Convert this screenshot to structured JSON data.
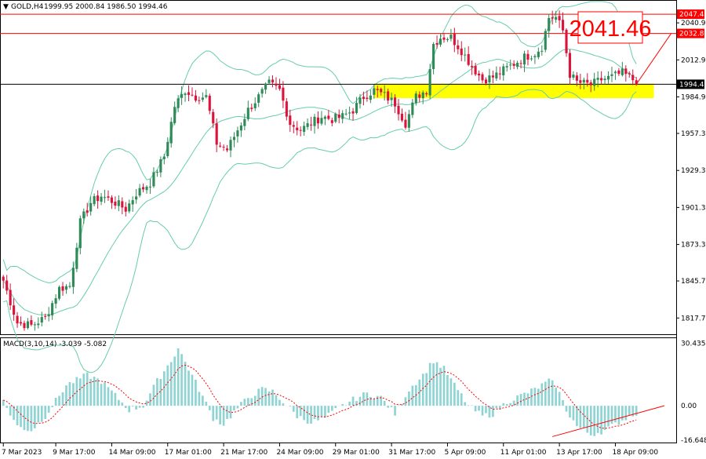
{
  "header": {
    "symbol": "GOLD,H4",
    "ohlc": "1999.95 2000.84 1986.50 1994.46"
  },
  "macd_header": "MACD(3,10,14) -3.039 -5.082",
  "big_label": "2041.46",
  "colors": {
    "bull": "#2e8b57",
    "bear": "#dc143c",
    "band": "#66cdaa",
    "signal": "#ff0000",
    "hist": "#8fd3d3",
    "highlight": "#ffff00",
    "resistance": "#ff0000",
    "current": "#000000"
  },
  "chart_data": {
    "type": "candlestick",
    "y_ticks": [
      "2047.45",
      "2040.90",
      "2032.89",
      "2012.90",
      "1994.46",
      "1984.90",
      "1957.30",
      "1929.30",
      "1901.30",
      "1873.30",
      "1845.70",
      "1817.70"
    ],
    "price_tags": [
      {
        "value": 2047.45,
        "label": "2047.45",
        "style": "red"
      },
      {
        "value": 2032.89,
        "label": "2032.89",
        "style": "red"
      },
      {
        "value": 1994.46,
        "label": "1994.46",
        "style": "black"
      }
    ],
    "x_ticks": [
      "7 Mar 2023",
      "9 Mar 17:00",
      "14 Mar 09:00",
      "17 Mar 01:00",
      "21 Mar 17:00",
      "24 Mar 09:00",
      "29 Mar 01:00",
      "31 Mar 17:00",
      "5 Apr 09:00",
      "11 Apr 01:00",
      "13 Apr 17:00",
      "18 Apr 09:00"
    ],
    "x_tick_bars": [
      0,
      15,
      31,
      47,
      63,
      79,
      95,
      111,
      127,
      143,
      159,
      175
    ],
    "price_range": [
      1806,
      2057
    ],
    "macd_range": [
      -17.5,
      32.5
    ],
    "macd_ticks": [
      "30.435",
      "0.00",
      "-16.648"
    ],
    "highlight_zone": {
      "from_bar": 106,
      "to_bar": 186,
      "low": 1984,
      "high": 1995
    },
    "projection": {
      "from_bar": 181,
      "from_price": 1994.46,
      "to_bar": 191,
      "to_price": 2033
    },
    "anchors": [
      [
        0,
        1846
      ],
      [
        4,
        1814
      ],
      [
        8,
        1812
      ],
      [
        12,
        1818
      ],
      [
        16,
        1840
      ],
      [
        19,
        1842
      ],
      [
        22,
        1890
      ],
      [
        25,
        1905
      ],
      [
        28,
        1910
      ],
      [
        32,
        1905
      ],
      [
        35,
        1900
      ],
      [
        38,
        1912
      ],
      [
        42,
        1920
      ],
      [
        46,
        1940
      ],
      [
        49,
        1978
      ],
      [
        52,
        1990
      ],
      [
        55,
        1985
      ],
      [
        58,
        1985
      ],
      [
        61,
        1950
      ],
      [
        64,
        1945
      ],
      [
        67,
        1960
      ],
      [
        70,
        1975
      ],
      [
        73,
        1985
      ],
      [
        76,
        1995
      ],
      [
        79,
        1990
      ],
      [
        82,
        1965
      ],
      [
        85,
        1960
      ],
      [
        88,
        1965
      ],
      [
        91,
        1970
      ],
      [
        94,
        1968
      ],
      [
        97,
        1970
      ],
      [
        100,
        1975
      ],
      [
        103,
        1985
      ],
      [
        106,
        1990
      ],
      [
        109,
        1986
      ],
      [
        112,
        1980
      ],
      [
        115,
        1965
      ],
      [
        118,
        1985
      ],
      [
        121,
        1990
      ],
      [
        123,
        2025
      ],
      [
        125,
        2030
      ],
      [
        128,
        2030
      ],
      [
        131,
        2020
      ],
      [
        134,
        2008
      ],
      [
        137,
        1998
      ],
      [
        140,
        2000
      ],
      [
        143,
        2005
      ],
      [
        146,
        2010
      ],
      [
        149,
        2015
      ],
      [
        152,
        2018
      ],
      [
        154,
        2023
      ],
      [
        156,
        2045
      ],
      [
        158,
        2045
      ],
      [
        160,
        2035
      ],
      [
        162,
        2002
      ],
      [
        164,
        1996
      ],
      [
        166,
        1995
      ],
      [
        168,
        1994
      ],
      [
        171,
        1998
      ],
      [
        174,
        2000
      ],
      [
        177,
        2003
      ],
      [
        180,
        1998
      ],
      [
        181,
        1994.46
      ]
    ],
    "macd_anchors": [
      [
        0,
        2
      ],
      [
        4,
        -10
      ],
      [
        8,
        -12
      ],
      [
        12,
        -5
      ],
      [
        18,
        10
      ],
      [
        24,
        15
      ],
      [
        28,
        12
      ],
      [
        32,
        5
      ],
      [
        36,
        -2
      ],
      [
        40,
        0
      ],
      [
        44,
        12
      ],
      [
        48,
        22
      ],
      [
        50,
        28
      ],
      [
        53,
        18
      ],
      [
        56,
        8
      ],
      [
        60,
        -6
      ],
      [
        63,
        -9
      ],
      [
        66,
        -3
      ],
      [
        70,
        4
      ],
      [
        74,
        8
      ],
      [
        77,
        7
      ],
      [
        80,
        2
      ],
      [
        84,
        -5
      ],
      [
        88,
        -8
      ],
      [
        92,
        -6
      ],
      [
        96,
        -1
      ],
      [
        100,
        3
      ],
      [
        104,
        6
      ],
      [
        108,
        4
      ],
      [
        112,
        -4
      ],
      [
        116,
        8
      ],
      [
        120,
        15
      ],
      [
        123,
        22
      ],
      [
        126,
        18
      ],
      [
        129,
        10
      ],
      [
        133,
        0
      ],
      [
        137,
        -5
      ],
      [
        140,
        -4
      ],
      [
        144,
        2
      ],
      [
        148,
        5
      ],
      [
        152,
        8
      ],
      [
        156,
        12
      ],
      [
        158,
        10
      ],
      [
        161,
        -2
      ],
      [
        164,
        -10
      ],
      [
        168,
        -14
      ],
      [
        172,
        -12
      ],
      [
        176,
        -8
      ],
      [
        180,
        -4
      ],
      [
        182,
        -3
      ]
    ],
    "num_bars": 182
  }
}
